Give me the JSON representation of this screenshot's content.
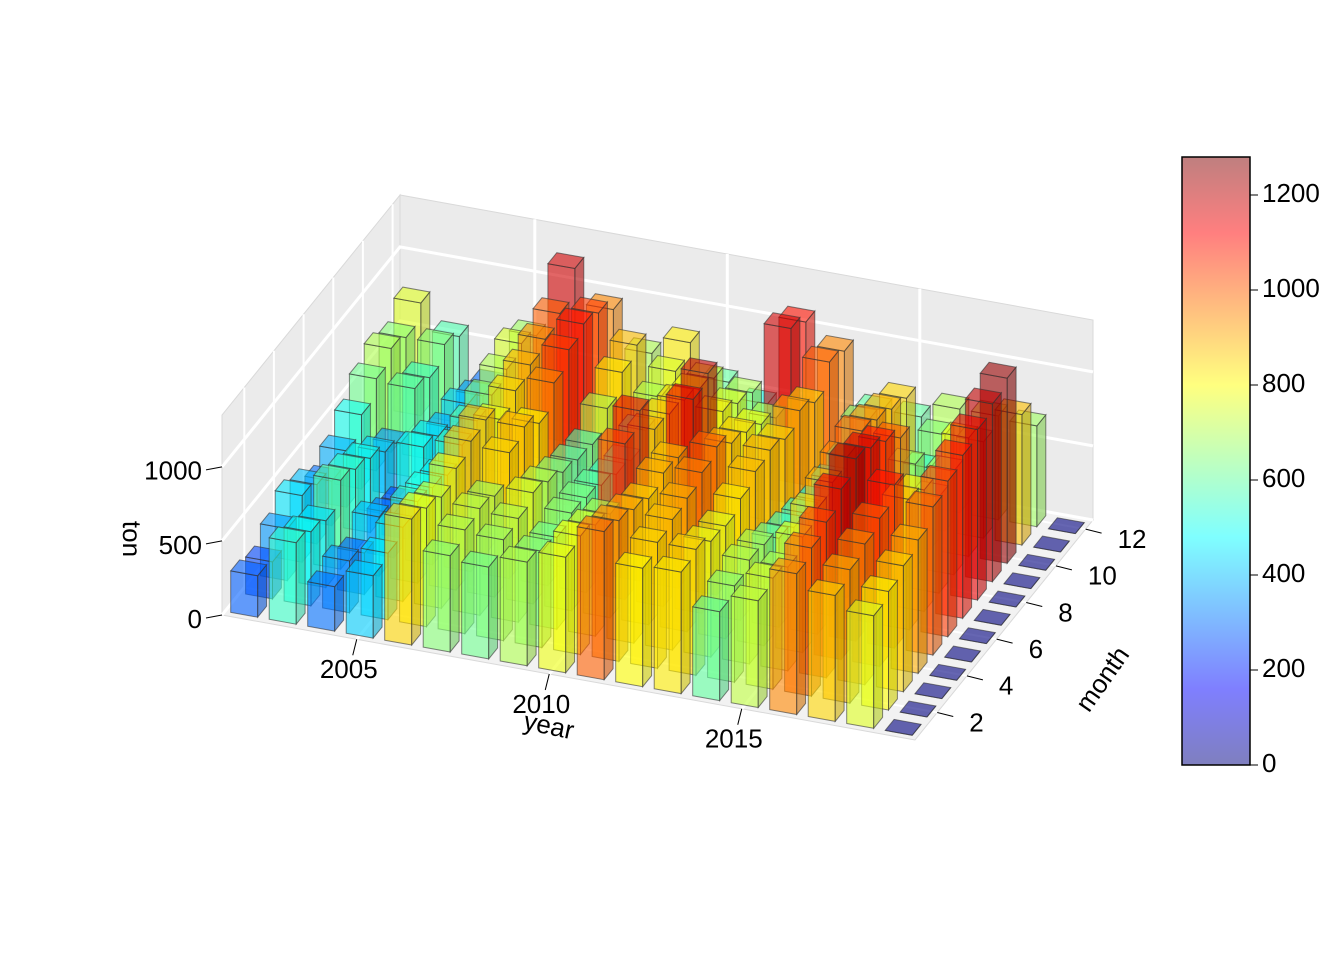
{
  "chart_data": {
    "type": "bar3d",
    "xlabel": "year",
    "ylabel": "month",
    "zlabel": "ton",
    "x": [
      2002,
      2003,
      2004,
      2005,
      2006,
      2007,
      2008,
      2009,
      2010,
      2011,
      2012,
      2013,
      2014,
      2015,
      2016,
      2017,
      2018,
      2019
    ],
    "y": [
      1,
      2,
      3,
      4,
      5,
      6,
      7,
      8,
      9,
      10,
      11,
      12
    ],
    "values": [
      [
        280,
        250,
        350,
        450,
        400,
        300,
        380,
        500,
        620,
        700,
        650,
        760
      ],
      [
        550,
        500,
        450,
        600,
        550,
        500,
        420,
        350,
        600,
        550,
        650,
        580
      ],
      [
        300,
        350,
        280,
        400,
        300,
        250,
        500,
        450,
        380,
        420,
        350,
        300
      ],
      [
        420,
        450,
        500,
        550,
        520,
        480,
        560,
        600,
        650,
        700,
        750,
        680
      ],
      [
        850,
        800,
        750,
        820,
        880,
        900,
        780,
        850,
        900,
        950,
        1000,
        1180
      ],
      [
        650,
        700,
        720,
        680,
        850,
        900,
        800,
        950,
        1050,
        1100,
        1050,
        950
      ],
      [
        620,
        680,
        700,
        750,
        700,
        640,
        600,
        580,
        700,
        820,
        880,
        700
      ],
      [
        700,
        650,
        620,
        660,
        640,
        600,
        550,
        520,
        600,
        700,
        750,
        820
      ],
      [
        780,
        800,
        750,
        700,
        1050,
        1150,
        900,
        880,
        850,
        800,
        750,
        600
      ],
      [
        1000,
        950,
        900,
        850,
        900,
        880,
        1150,
        1200,
        820,
        750,
        700,
        500
      ],
      [
        800,
        850,
        880,
        900,
        950,
        1000,
        900,
        850,
        780,
        700,
        1180,
        1100
      ],
      [
        820,
        850,
        780,
        760,
        820,
        880,
        900,
        850,
        920,
        850,
        1000,
        950
      ],
      [
        600,
        650,
        700,
        680,
        600,
        550,
        520,
        480,
        500,
        520,
        650,
        600
      ],
      [
        720,
        750,
        700,
        780,
        850,
        900,
        950,
        1000,
        950,
        900,
        850,
        600
      ],
      [
        950,
        1000,
        1050,
        1150,
        1230,
        1180,
        1100,
        1000,
        700,
        550,
        650,
        700
      ],
      [
        850,
        900,
        950,
        1000,
        1100,
        880,
        820,
        650,
        700,
        800,
        650,
        700
      ],
      [
        760,
        800,
        850,
        900,
        1000,
        1050,
        1100,
        1150,
        1200,
        1250,
        880,
        680
      ],
      [
        0,
        0,
        0,
        0,
        0,
        0,
        0,
        0,
        0,
        0,
        0,
        0
      ]
    ],
    "xlim": [
      2001.5,
      2019.5
    ],
    "ylim": [
      0.5,
      12.5
    ],
    "zlim": [
      0,
      1350
    ],
    "xticks": [
      2005,
      2010,
      2015
    ],
    "yticks": [
      2,
      4,
      6,
      8,
      10,
      12
    ],
    "zticks": [
      0,
      500,
      1000
    ],
    "clim": [
      0,
      1280
    ],
    "colorbar_ticks": [
      0,
      200,
      400,
      600,
      800,
      1000,
      1200
    ],
    "colors": [
      "#00007f",
      "#0000ff",
      "#007fff",
      "#00ffff",
      "#7fff7f",
      "#ffff00",
      "#ff7f00",
      "#ff0000",
      "#7f0000"
    ],
    "grid": true
  }
}
